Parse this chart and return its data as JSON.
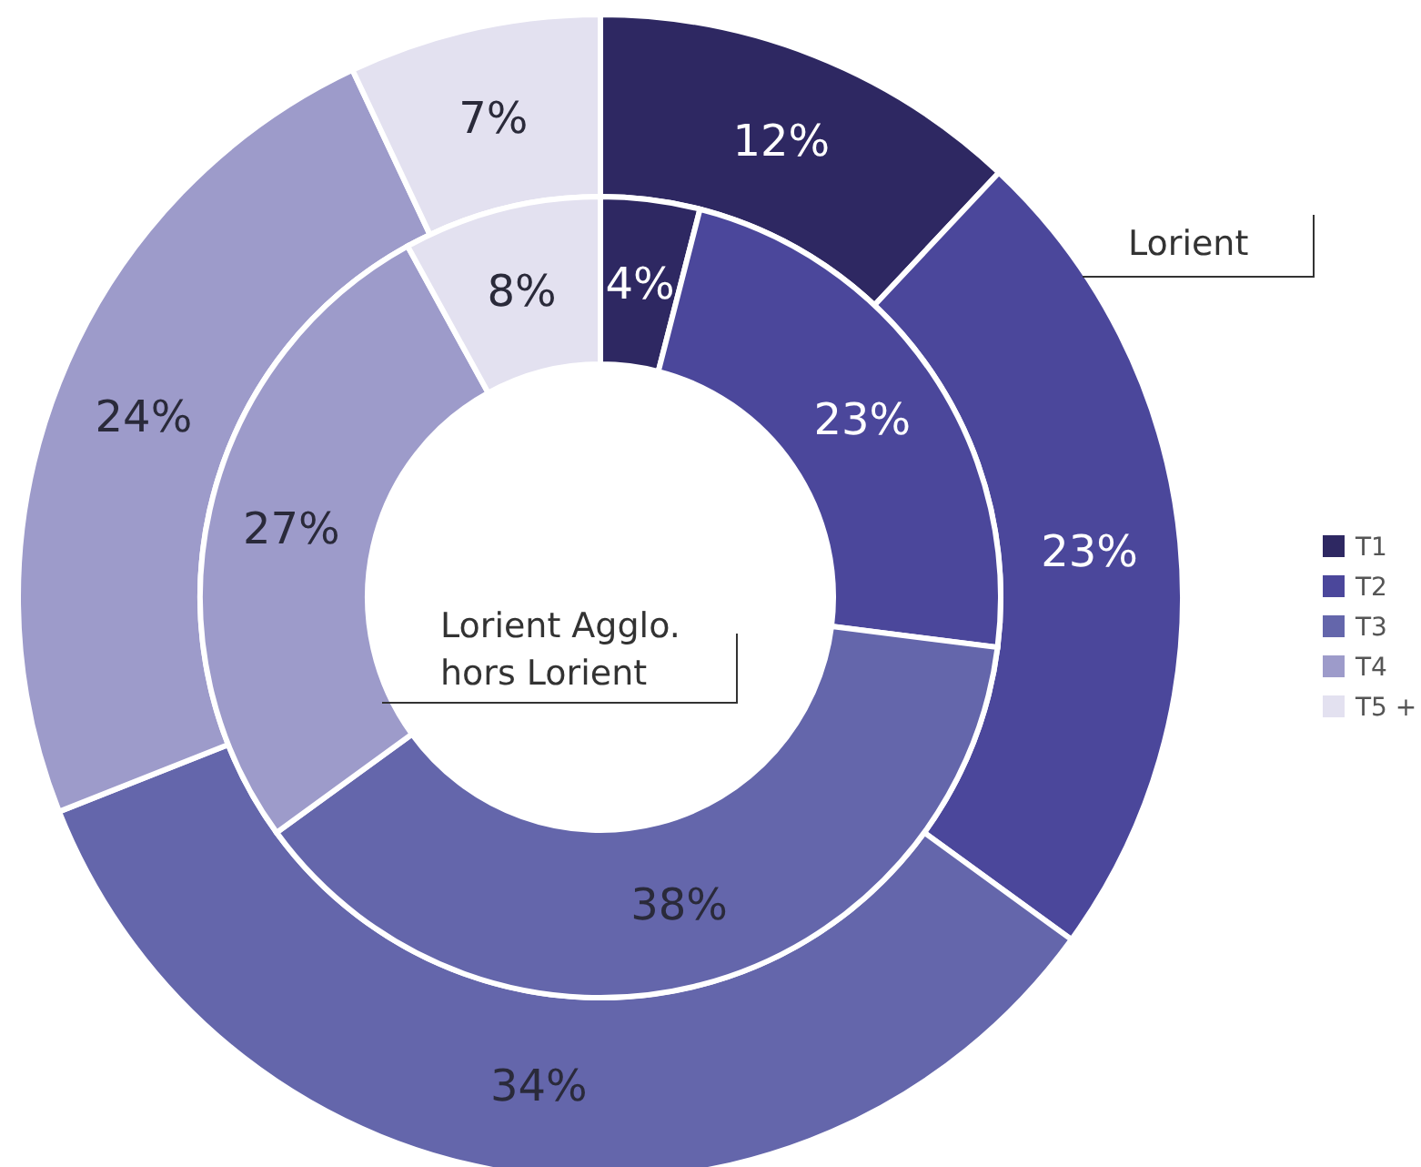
{
  "chart_data": {
    "type": "donut",
    "categories": [
      "T1",
      "T2",
      "T3",
      "T4",
      "T5 +"
    ],
    "colors": [
      "#2e2862",
      "#4b479b",
      "#6466ab",
      "#9d9bca",
      "#e3e1f0"
    ],
    "legend": "right",
    "series": [
      {
        "name": "Lorient",
        "values": [
          12,
          23,
          34,
          24,
          7
        ],
        "value_labels": [
          "12%",
          "23%",
          "34%",
          "24%",
          "7%"
        ]
      },
      {
        "name": "Lorient Agglo. hors Lorient",
        "values": [
          4,
          23,
          38,
          27,
          8
        ],
        "value_labels": [
          "4%",
          "23%",
          "38%",
          "27%",
          "8%"
        ]
      }
    ]
  }
}
